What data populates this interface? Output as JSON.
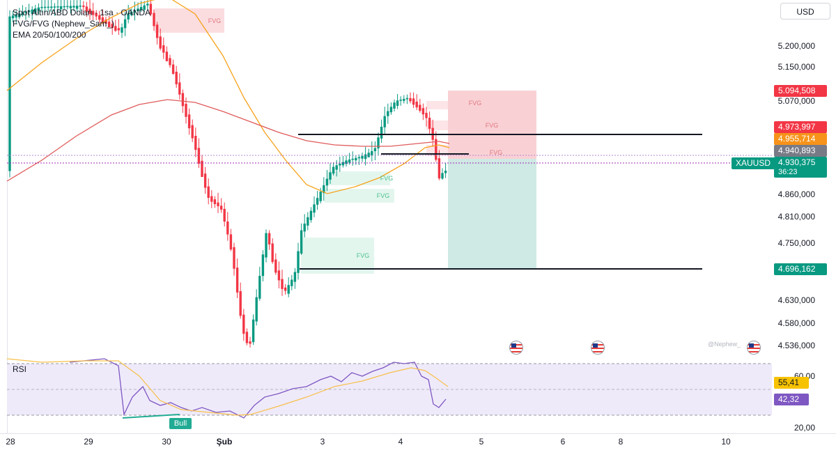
{
  "legend": {
    "symbol_line": "Spot Altın/ABD Doları · 1sa · OANDA",
    "indicator_fvg": "FVG/FVG (Nephew_Sam_)",
    "indicator_ema": "EMA 20/50/100/200"
  },
  "currency_button": "USD",
  "price_ticks": [
    "5.200,000",
    "5.150,000",
    "5.070,000",
    "4.860,000",
    "4.810,000",
    "4.750,000",
    "4.630,000",
    "4.580,000",
    "4.536,000"
  ],
  "price_tags": {
    "take_profit_top": "5.094,508",
    "ema_red": "4.973,997",
    "ema_orange": "4.955,714",
    "entry_gray": "4.940,893",
    "symbol": "XAUUSD",
    "current_price": "4.930,375",
    "countdown": "36:23",
    "stop_bottom": "4.696,162"
  },
  "fvg_labels": [
    "FVG",
    "FVG",
    "FVG",
    "FVG",
    "FVG",
    "FVG",
    "FVG"
  ],
  "rsi": {
    "label": "RSI",
    "tick_60": "60,00",
    "value_ma": "55,41",
    "value_rsi": "42,32",
    "tick_20": "20,00",
    "divergence_label": "Bull"
  },
  "time_labels": [
    "28",
    "29",
    "30",
    "Şub",
    "3",
    "4",
    "5",
    "6",
    "8",
    "10"
  ],
  "watermark": "@Nephew_",
  "colors": {
    "bull": "#089981",
    "bear": "#f23645",
    "ema_orange": "#f7a21b",
    "ema_red": "#e05a5a",
    "rsi_line": "#7e57c2",
    "tp_zone": "#f9d1d5",
    "sl_zone": "#cfe9e4"
  },
  "chart_data": {
    "type": "candlestick",
    "symbol": "XAUUSD",
    "timeframe": "1sa",
    "ylim": [
      4520,
      5260
    ],
    "rsi_range": [
      20,
      80
    ]
  }
}
